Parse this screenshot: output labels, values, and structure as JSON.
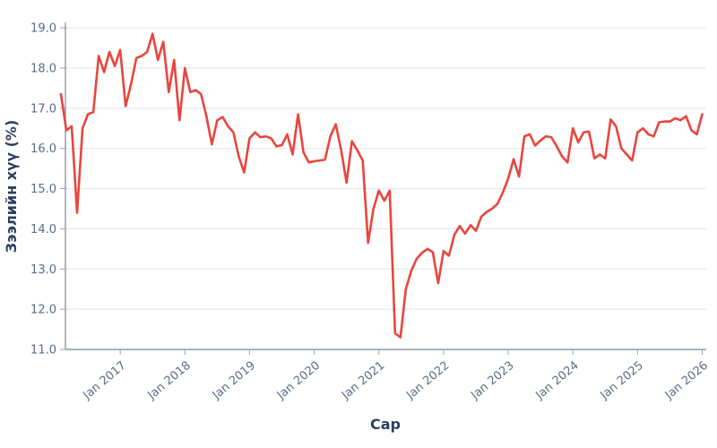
{
  "colors": {
    "line": "#e8463d",
    "grid": "#e7e9ef",
    "axis_line": "#7b8496",
    "tick_mark": "#9aa3b5",
    "tick_text": "#5d6b87",
    "title_text": "#2a3f5f",
    "background": "#ffffff"
  },
  "chart_data": {
    "type": "line",
    "title": "",
    "xlabel": "Сар",
    "ylabel": "Зээлийн хүү (%)",
    "ylim": [
      11,
      19
    ],
    "grid": true,
    "legend": false,
    "y_ticks": [
      11,
      12,
      13,
      14,
      15,
      16,
      17,
      18,
      19
    ],
    "y_tick_labels": [
      "11.0",
      "12.0",
      "13.0",
      "14.0",
      "15.0",
      "16.0",
      "17.0",
      "18.0",
      "19.0"
    ],
    "x_tick_labels": [
      "Jan 2017",
      "Jan 2018",
      "Jan 2019",
      "Jan 2020",
      "Jan 2021",
      "Jan 2022",
      "Jan 2023",
      "Jan 2024",
      "Jan 2025",
      "Jan 2026"
    ],
    "series": [
      {
        "name": "Зээлийн хүү (%)",
        "color": "#e8463d",
        "x": [
          "2016-02",
          "2016-03",
          "2016-04",
          "2016-05",
          "2016-06",
          "2016-07",
          "2016-08",
          "2016-09",
          "2016-10",
          "2016-11",
          "2016-12",
          "2017-01",
          "2017-02",
          "2017-03",
          "2017-04",
          "2017-05",
          "2017-06",
          "2017-07",
          "2017-08",
          "2017-09",
          "2017-10",
          "2017-11",
          "2017-12",
          "2018-01",
          "2018-02",
          "2018-03",
          "2018-04",
          "2018-05",
          "2018-06",
          "2018-07",
          "2018-08",
          "2018-09",
          "2018-10",
          "2018-11",
          "2018-12",
          "2019-01",
          "2019-02",
          "2019-03",
          "2019-04",
          "2019-05",
          "2019-06",
          "2019-07",
          "2019-08",
          "2019-09",
          "2019-10",
          "2019-11",
          "2019-12",
          "2020-01",
          "2020-02",
          "2020-03",
          "2020-04",
          "2020-05",
          "2020-06",
          "2020-07",
          "2020-08",
          "2020-09",
          "2020-10",
          "2020-11",
          "2020-12",
          "2021-01",
          "2021-02",
          "2021-03",
          "2021-04",
          "2021-05",
          "2021-06",
          "2021-07",
          "2021-08",
          "2021-09",
          "2021-10",
          "2021-11",
          "2021-12",
          "2022-01",
          "2022-02",
          "2022-03",
          "2022-04",
          "2022-05",
          "2022-06",
          "2022-07",
          "2022-08",
          "2022-09",
          "2022-10",
          "2022-11",
          "2022-12",
          "2023-01",
          "2023-02",
          "2023-03",
          "2023-04",
          "2023-05",
          "2023-06",
          "2023-07",
          "2023-08",
          "2023-09",
          "2023-10",
          "2023-11",
          "2023-12",
          "2024-01",
          "2024-02",
          "2024-03",
          "2024-04",
          "2024-05",
          "2024-06",
          "2024-07",
          "2024-08",
          "2024-09",
          "2024-10",
          "2024-11",
          "2024-12",
          "2025-01",
          "2025-02",
          "2025-03",
          "2025-04",
          "2025-05",
          "2025-06",
          "2025-07",
          "2025-08",
          "2025-09",
          "2025-10",
          "2025-11",
          "2025-12",
          "2026-01"
        ],
        "values": [
          17.35,
          16.45,
          16.55,
          14.4,
          16.5,
          16.85,
          16.9,
          18.3,
          17.9,
          18.4,
          18.05,
          18.45,
          17.05,
          17.6,
          18.25,
          18.3,
          18.4,
          18.85,
          18.2,
          18.65,
          17.4,
          18.2,
          16.7,
          18.0,
          17.4,
          17.45,
          17.35,
          16.8,
          16.1,
          16.7,
          16.78,
          16.55,
          16.4,
          15.8,
          15.4,
          16.25,
          16.4,
          16.28,
          16.3,
          16.25,
          16.05,
          16.08,
          16.35,
          15.85,
          16.85,
          15.9,
          15.65,
          15.68,
          15.7,
          15.72,
          16.3,
          16.6,
          15.95,
          15.15,
          16.18,
          15.95,
          15.7,
          13.65,
          14.5,
          14.95,
          14.7,
          14.95,
          11.4,
          11.3,
          12.5,
          12.95,
          13.25,
          13.4,
          13.5,
          13.42,
          12.65,
          13.45,
          13.33,
          13.85,
          14.07,
          13.88,
          14.09,
          13.95,
          14.3,
          14.42,
          14.5,
          14.62,
          14.9,
          15.25,
          15.73,
          15.3,
          16.3,
          16.35,
          16.07,
          16.2,
          16.3,
          16.28,
          16.05,
          15.8,
          15.65,
          16.5,
          16.15,
          16.4,
          16.42,
          15.75,
          15.85,
          15.75,
          16.72,
          16.55,
          16.0,
          15.85,
          15.7,
          16.4,
          16.5,
          16.35,
          16.3,
          16.65,
          16.67,
          16.67,
          16.75,
          16.7,
          16.8,
          16.45,
          16.35,
          16.85
        ]
      }
    ]
  }
}
